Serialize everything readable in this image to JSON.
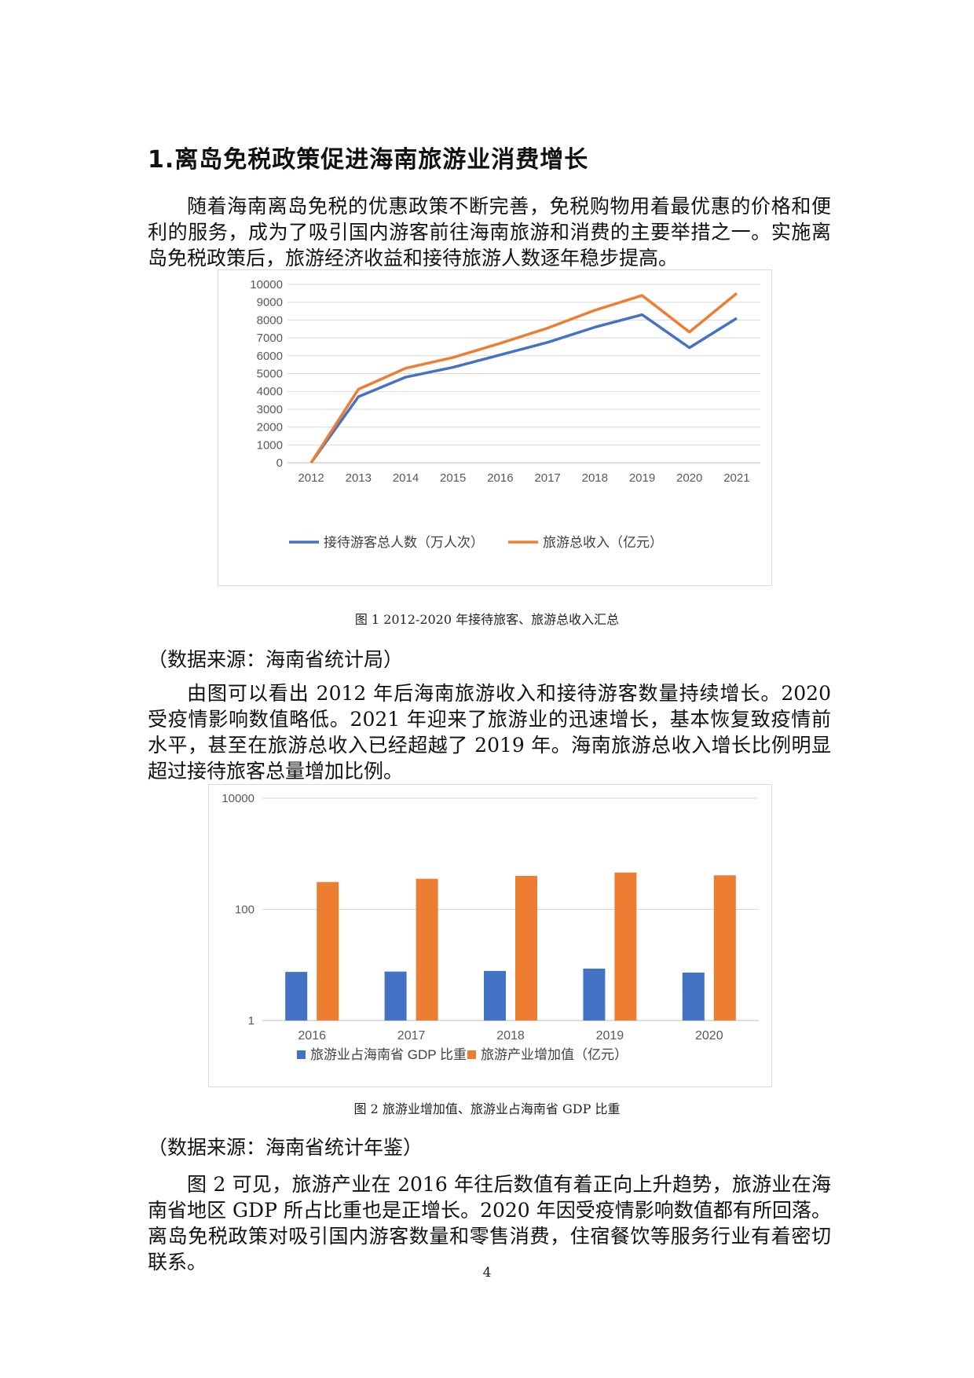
{
  "heading": "1.离岛免税政策促进海南旅游业消费增长",
  "para1": "随着海南离岛免税的优惠政策不断完善，免税购物用着最优惠的价格和便利的服务，成为了吸引国内游客前往海南旅游和消费的主要举措之一。实施离岛免税政策后，旅游经济收益和接待旅游人数逐年稳步提高。",
  "caption1": "图 1  2012-2020 年接待旅客、旅游总收入汇总",
  "source1": "（数据来源：海南省统计局）",
  "para2": "由图可以看出 2012 年后海南旅游收入和接待游客数量持续增长。2020 受疫情影响数值略低。2021 年迎来了旅游业的迅速增长，基本恢复致疫情前水平，甚至在旅游总收入已经超越了 2019 年。海南旅游总收入增长比例明显超过接待旅客总量增加比例。",
  "caption2": "图 2  旅游业增加值、旅游业占海南省 GDP 比重",
  "source2": "（数据来源：海南省统计年鉴）",
  "para3": "图 2 可见，旅游产业在 2016 年往后数值有着正向上升趋势，旅游业在海南省地区 GDP 所占比重也是正增长。2020 年因受疫情影响数值都有所回落。离岛免税政策对吸引国内游客数量和零售消费，住宿餐饮等服务行业有着密切联系。",
  "page_number": "4",
  "chart_data": [
    {
      "type": "line",
      "x": [
        "2012",
        "2013",
        "2014",
        "2015",
        "2016",
        "2017",
        "2018",
        "2019",
        "2020",
        "2021"
      ],
      "series": [
        {
          "name": "接待游客总人数（万人次）",
          "color": "#4472C4",
          "values": [
            0,
            3700,
            4800,
            5350,
            6050,
            6750,
            7600,
            8300,
            6450,
            8100
          ]
        },
        {
          "name": "旅游总收入（亿元）",
          "color": "#ED7D31",
          "values": [
            0,
            4120,
            5300,
            5900,
            6700,
            7550,
            8550,
            9380,
            7330,
            9500
          ]
        }
      ],
      "ylim": [
        0,
        10000
      ],
      "yticks": [
        "0",
        "1000",
        "2000",
        "3000",
        "4000",
        "5000",
        "6000",
        "7000",
        "8000",
        "9000",
        "10000"
      ],
      "grid": true,
      "legend": "bottom"
    },
    {
      "type": "bar",
      "categories": [
        "2016",
        "2017",
        "2018",
        "2019",
        "2020"
      ],
      "series": [
        {
          "name": "旅游业占海南省 GDP 比重",
          "color": "#4472C4",
          "values": [
            7.5,
            7.6,
            7.8,
            8.6,
            7.3
          ]
        },
        {
          "name": "旅游产业增加值（亿元）",
          "color": "#ED7D31",
          "values": [
            310,
            355,
            400,
            460,
            410
          ]
        }
      ],
      "yscale": "log",
      "ylim": [
        1,
        10000
      ],
      "yticks": [
        "1",
        "100",
        "10000"
      ],
      "grid": true,
      "legend": "bottom"
    }
  ]
}
